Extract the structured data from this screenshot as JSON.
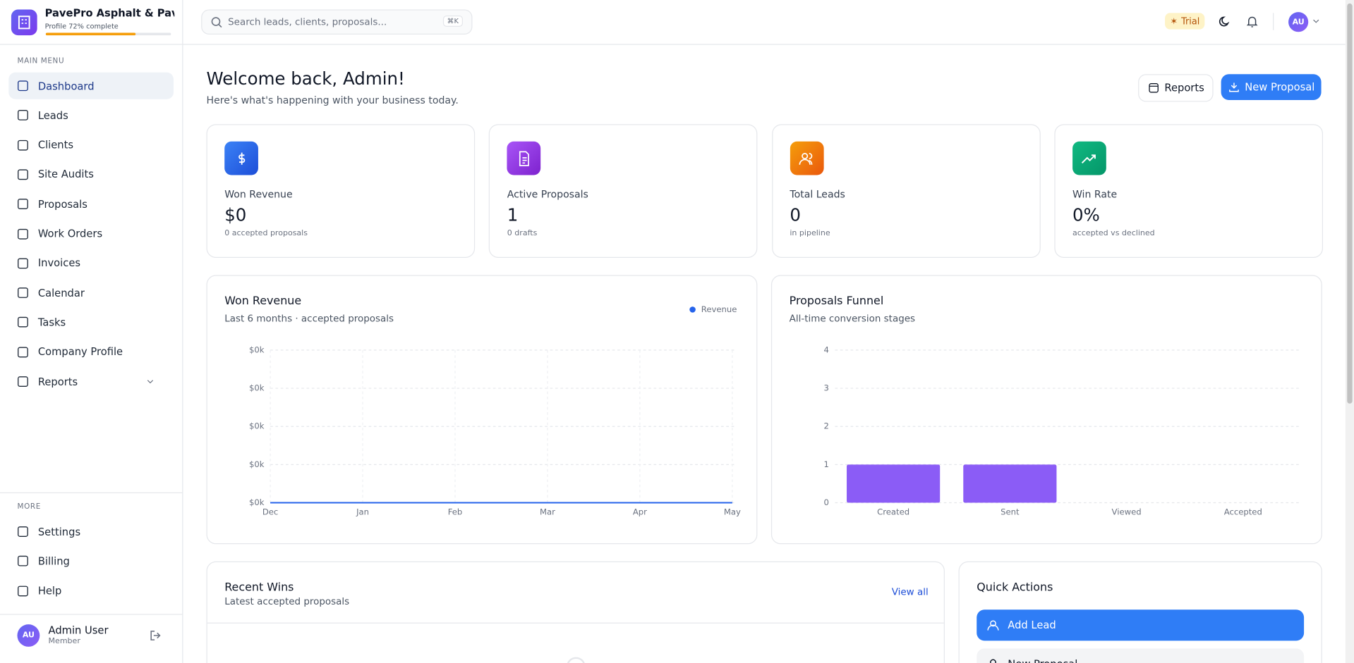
{
  "sidebar": {
    "company": "PavePro Asphalt & Paving ...",
    "profile": "Profile 72% complete",
    "main_menu_title": "MAIN MENU",
    "main_menu": [
      "Dashboard",
      "Leads",
      "Clients",
      "Site Audits",
      "Proposals",
      "Work Orders",
      "Invoices",
      "Calendar",
      "Tasks",
      "Company Profile",
      "Reports"
    ],
    "more_title": "MORE",
    "more": [
      "Settings",
      "Billing",
      "Help"
    ],
    "user": {
      "initials": "AU",
      "name": "Admin User",
      "role": "Member"
    }
  },
  "topbar": {
    "search_placeholder": "Search leads, clients, proposals...",
    "shortcut": "⌘K",
    "trial": "Trial",
    "avatar": "AU"
  },
  "welcome": {
    "title": "Welcome back, Admin!",
    "subtitle": "Here's what's happening with your business today.",
    "reports_button": "Reports",
    "new_proposal_button": "New Proposal"
  },
  "stats": [
    {
      "label": "Won Revenue",
      "value": "$0",
      "note": "0 accepted proposals"
    },
    {
      "label": "Active Proposals",
      "value": "1",
      "note": "0 drafts"
    },
    {
      "label": "Total Leads",
      "value": "0",
      "note": "in pipeline"
    },
    {
      "label": "Win Rate",
      "value": "0%",
      "note": "accepted vs declined"
    }
  ],
  "chart_data": [
    {
      "type": "line",
      "title": "Won Revenue",
      "subtitle": "Last 6 months · accepted proposals",
      "categories": [
        "Dec",
        "Jan",
        "Feb",
        "Mar",
        "Apr",
        "May"
      ],
      "series": [
        {
          "name": "Revenue",
          "color": "#2563eb",
          "values": [
            0,
            0,
            0,
            0,
            0,
            0
          ]
        }
      ],
      "ylim": [
        0,
        4
      ],
      "yticks": [
        {
          "value": 0,
          "label": "$0k"
        },
        {
          "value": 1,
          "label": "$0k"
        },
        {
          "value": 2,
          "label": "$0k"
        },
        {
          "value": 3,
          "label": "$0k"
        },
        {
          "value": 4,
          "label": "$0k"
        }
      ],
      "grid": true,
      "legend": "top-right"
    },
    {
      "type": "bar",
      "title": "Proposals Funnel",
      "subtitle": "All-time conversion stages",
      "categories": [
        "Created",
        "Sent",
        "Viewed",
        "Accepted"
      ],
      "values": [
        1,
        1,
        0,
        0
      ],
      "color": "#8b5cf6",
      "ylim": [
        0,
        4
      ],
      "yticks": [
        0,
        1,
        2,
        3,
        4
      ],
      "grid": true
    }
  ],
  "recent_wins": {
    "title": "Recent Wins",
    "subtitle": "Latest accepted proposals",
    "link": "View all"
  },
  "quick_actions": {
    "title": "Quick Actions",
    "actions": [
      "Add Lead",
      "New Proposal"
    ]
  }
}
